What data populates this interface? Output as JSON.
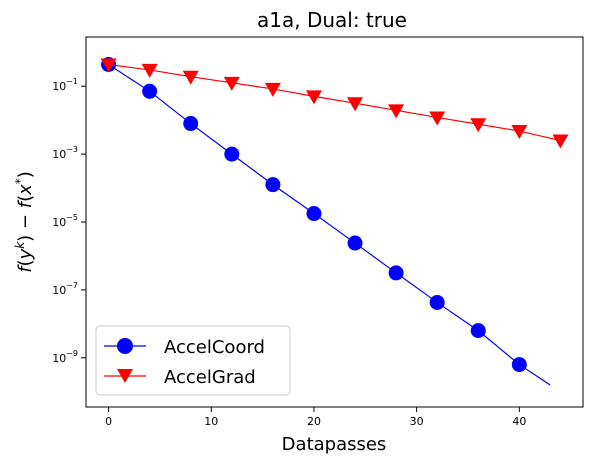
{
  "chart_data": {
    "type": "line",
    "title": "a1a, Dual: true",
    "xlabel": "Datapasses",
    "ylabel": "f(y^k) − f(x^*)",
    "xlim": [
      -2.2,
      46.2
    ],
    "ylim_log10": [
      -10.45,
      0.45
    ],
    "yscale": "log",
    "grid": false,
    "legend_position": "lower-left",
    "x_ticks": [
      0,
      10,
      20,
      30,
      40
    ],
    "y_tick_exponents": [
      -1,
      -3,
      -5,
      -7,
      -9
    ],
    "series": [
      {
        "name": "AccelCoord",
        "color": "#0000ff",
        "marker": "circle",
        "x": [
          0,
          4,
          8,
          12,
          16,
          20,
          24,
          28,
          32,
          36,
          40,
          43
        ],
        "log10_y": [
          -0.36,
          -1.15,
          -2.1,
          -3.0,
          -3.9,
          -4.75,
          -5.62,
          -6.5,
          -7.37,
          -8.2,
          -9.2,
          -9.8
        ],
        "marker_x": [
          0,
          4,
          8,
          12,
          16,
          20,
          24,
          28,
          32,
          36,
          40
        ]
      },
      {
        "name": "AccelGrad",
        "color": "#ff0000",
        "marker": "triangle-down",
        "x": [
          0,
          4,
          8,
          12,
          16,
          20,
          24,
          28,
          32,
          36,
          40,
          44
        ],
        "log10_y": [
          -0.36,
          -0.52,
          -0.72,
          -0.9,
          -1.08,
          -1.3,
          -1.5,
          -1.71,
          -1.92,
          -2.12,
          -2.32,
          -2.6
        ],
        "marker_x": [
          0,
          4,
          8,
          12,
          16,
          20,
          24,
          28,
          32,
          36,
          40,
          44
        ]
      }
    ]
  }
}
